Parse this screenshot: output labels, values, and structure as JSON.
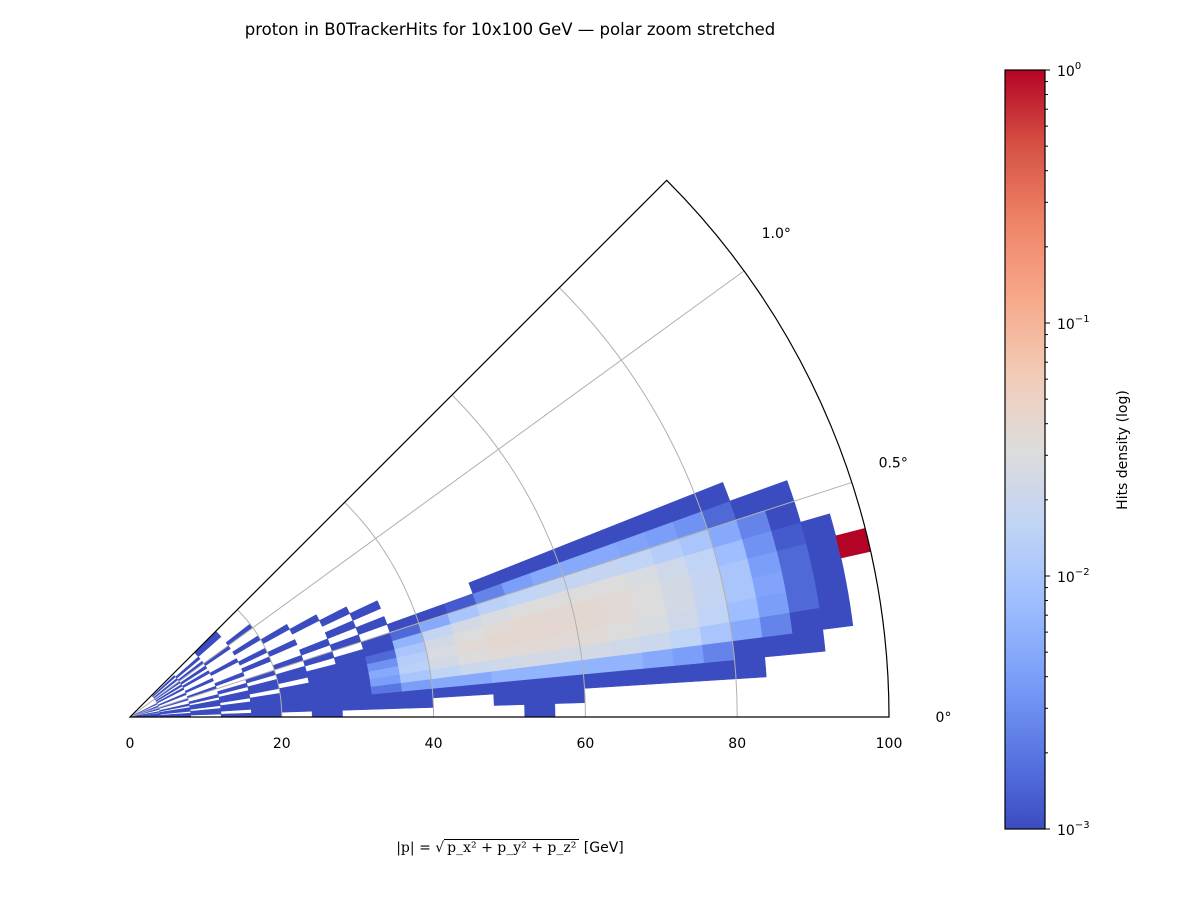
{
  "chart_data": {
    "type": "heatmap",
    "projection": "polar (stretched angular axis)",
    "title": "proton in B0TrackerHits for 10x100 GeV — polar zoom stretched",
    "xlabel_parts": {
      "lhs": "|p| = ",
      "radicand": "p_x² + p_y² + p_z²",
      "unit": "[GeV]"
    },
    "r_range": [
      0,
      100
    ],
    "r_ticks": [
      0,
      20,
      40,
      60,
      80,
      100
    ],
    "r_gridlines": [
      20,
      40,
      60,
      80
    ],
    "theta_range_deg": [
      0,
      1.25
    ],
    "theta_ticks": [
      {
        "value": 0,
        "label": "0°"
      },
      {
        "value": 0.5,
        "label": "0.5°"
      },
      {
        "value": 1.0,
        "label": "1.0°"
      }
    ],
    "r_bin_width": 4,
    "theta_bin_width_deg": 0.05,
    "z_scale": "log10",
    "z_range_log10": [
      -3,
      0
    ],
    "colormap": [
      "#3b4cc0",
      "#5977e3",
      "#7b9ff9",
      "#9ebeff",
      "#c0d4f5",
      "#dddcdc",
      "#f2cbb7",
      "#f7a889",
      "#ee8468",
      "#d65244",
      "#b40426"
    ],
    "colorbar": {
      "label": "Hits density (log)",
      "base": "10",
      "tick_exponents": [
        0,
        -1,
        -2,
        -3
      ]
    },
    "z_log10": [
      [
        null,
        -3,
        null,
        -3,
        -3,
        null,
        -3,
        null,
        null,
        null,
        null,
        null,
        null,
        -3
      ],
      [
        -3,
        -3,
        -3,
        null,
        -3,
        -3,
        -3,
        -3,
        -3,
        -3,
        null,
        null,
        -3,
        -3,
        -3
      ],
      [
        -3,
        null,
        -3,
        -3,
        -3,
        -3,
        -3,
        -3,
        -3,
        -3,
        -3,
        -3,
        -3,
        -3,
        -3,
        -3,
        -3,
        -3,
        -3,
        -3,
        -3
      ],
      [
        -3,
        -3,
        null,
        -3,
        -3,
        -3,
        -3,
        -3,
        -2.7,
        -2.4,
        -2.3,
        -2.3,
        -2.2,
        -2.2,
        -2.2,
        -2.2,
        -2.2,
        -2.3,
        -2.4,
        -2.6,
        -3,
        -3,
        -3
      ],
      [
        null,
        -3,
        -3,
        null,
        -3,
        -3,
        -3,
        -3,
        -2.4,
        -2.0,
        -1.8,
        -1.7,
        -1.65,
        -1.6,
        -1.6,
        -1.6,
        -1.65,
        -1.7,
        -1.8,
        -2.0,
        -2.3,
        -2.6,
        -3,
        -3
      ],
      [
        -3,
        null,
        -3,
        -3,
        null,
        -3,
        -3,
        -3,
        -2.3,
        -1.85,
        -1.6,
        -1.5,
        -1.45,
        -1.45,
        -1.45,
        -1.45,
        -1.5,
        -1.55,
        -1.65,
        -1.8,
        -2.1,
        -2.4,
        -2.8,
        -3
      ],
      [
        null,
        -3,
        null,
        -3,
        -3,
        null,
        -3,
        -3,
        -2.5,
        -1.9,
        -1.55,
        -1.45,
        -1.4,
        -1.4,
        -1.4,
        -1.42,
        -1.45,
        -1.5,
        -1.6,
        -1.75,
        -2.0,
        -2.35,
        -2.8,
        -3
      ],
      [
        null,
        null,
        -3,
        null,
        -3,
        -3,
        -3,
        -3,
        -2.8,
        -2.0,
        -1.6,
        -1.5,
        -1.45,
        -1.42,
        -1.42,
        -1.42,
        -1.45,
        -1.5,
        -1.6,
        -1.75,
        -2.0,
        -2.4,
        -2.8,
        -3,
        0
      ],
      [
        -3,
        null,
        null,
        -3,
        null,
        -3,
        null,
        -3,
        -3,
        -2.2,
        -1.75,
        -1.6,
        -1.55,
        -1.5,
        -1.5,
        -1.5,
        -1.5,
        -1.55,
        -1.65,
        -1.8,
        -2.1,
        -2.5,
        -2.9,
        -3
      ],
      [
        null,
        -3,
        null,
        null,
        -3,
        null,
        -3,
        null,
        -3,
        -2.8,
        -2.3,
        -2.0,
        -1.85,
        -1.8,
        -1.75,
        -1.75,
        -1.75,
        -1.8,
        -1.9,
        -2.0,
        -2.3,
        -2.6,
        -3
      ],
      [
        null,
        null,
        -3,
        null,
        null,
        -3,
        null,
        -3,
        null,
        -3,
        -3,
        -2.9,
        -2.6,
        -2.4,
        -2.3,
        -2.3,
        -2.3,
        -2.35,
        -2.4,
        -2.5,
        -2.8,
        -3,
        -3
      ],
      [
        -3,
        null,
        null,
        -3,
        null,
        null,
        -3,
        null,
        -3,
        null,
        null,
        null,
        -3,
        -3,
        -3,
        -3,
        -3,
        -3,
        -3,
        -3,
        -3
      ],
      [
        null,
        -3,
        null,
        null,
        -3,
        null,
        null,
        -3
      ],
      [
        null,
        null,
        -3,
        null,
        null,
        -3,
        null,
        null,
        -3
      ],
      [
        -3,
        null,
        null,
        null,
        -3,
        null,
        null,
        -3
      ],
      [
        null,
        -3,
        null,
        -3,
        null,
        null,
        -3
      ],
      [
        null,
        null,
        -3,
        null,
        null,
        -3
      ],
      [
        null,
        -3,
        null,
        null,
        -3
      ],
      [
        null,
        null,
        -3
      ],
      [
        null,
        -3,
        null,
        -3
      ],
      [
        null,
        null,
        -3,
        null,
        -3
      ],
      [
        null,
        -3
      ],
      [
        null,
        null,
        -3
      ],
      [
        null,
        -3,
        null,
        -3
      ],
      [
        null,
        null,
        null,
        -3
      ]
    ]
  }
}
